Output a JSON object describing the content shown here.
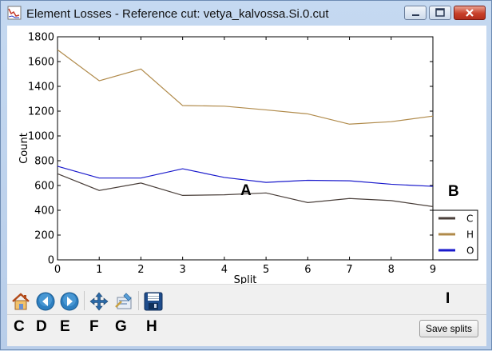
{
  "window": {
    "title": "Element Losses - Reference cut: vetya_kalvossa.Si.0.cut"
  },
  "toolbar": {
    "buttons": [
      {
        "name": "home-icon"
      },
      {
        "name": "back-icon"
      },
      {
        "name": "forward-icon"
      },
      {
        "name": "pan-icon"
      },
      {
        "name": "configure-subplots-icon"
      },
      {
        "name": "save-figure-icon"
      }
    ],
    "save_splits_label": "Save splits"
  },
  "markers": {
    "A": "A",
    "B": "B",
    "C": "C",
    "D": "D",
    "E": "E",
    "F": "F",
    "G": "G",
    "H": "H",
    "I": "I"
  },
  "chart_data": {
    "type": "line",
    "xlabel": "Split",
    "ylabel": "Count",
    "x": [
      0,
      1,
      2,
      3,
      4,
      5,
      6,
      7,
      8,
      9
    ],
    "xlim": [
      0,
      9
    ],
    "ylim": [
      0,
      1800
    ],
    "xticks": [
      "0",
      "1",
      "2",
      "3",
      "4",
      "5",
      "6",
      "7",
      "8",
      "9"
    ],
    "yticks": [
      "0",
      "200",
      "400",
      "600",
      "800",
      "1000",
      "1200",
      "1400",
      "1600",
      "1800"
    ],
    "legend_position": "bottom-right",
    "series": [
      {
        "name": "C",
        "color": "#4a3f3a",
        "values": [
          695,
          560,
          620,
          520,
          525,
          540,
          462,
          495,
          478,
          430
        ]
      },
      {
        "name": "H",
        "color": "#b08a4a",
        "values": [
          1695,
          1445,
          1540,
          1245,
          1240,
          1210,
          1178,
          1095,
          1115,
          1160
        ]
      },
      {
        "name": "O",
        "color": "#1a1acc",
        "values": [
          755,
          660,
          660,
          735,
          665,
          625,
          642,
          638,
          610,
          593
        ]
      }
    ]
  }
}
